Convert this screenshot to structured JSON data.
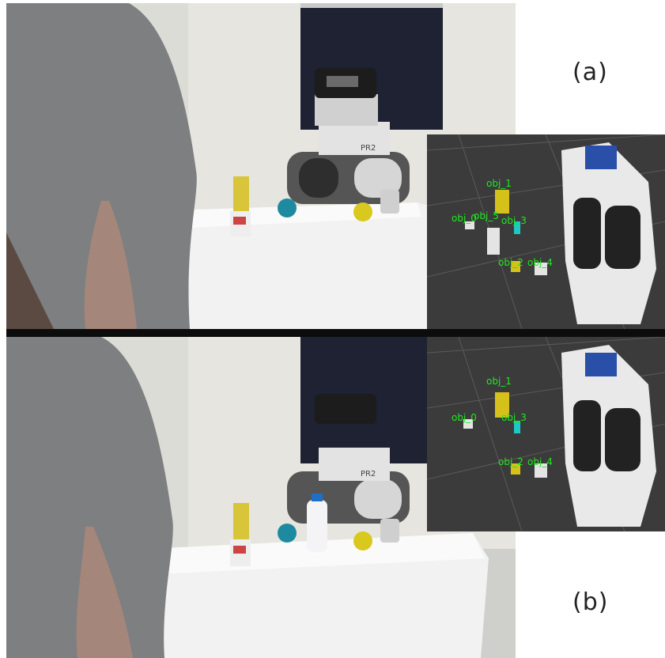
{
  "panels": {
    "a": {
      "label": "(a)",
      "rviz_labels": [
        "obj_1",
        "obj_2",
        "obj_5",
        "obj_3",
        "obj_0",
        "obj_4"
      ]
    },
    "b": {
      "label": "(b)",
      "rviz_labels": [
        "obj_1",
        "obj_0",
        "obj_3",
        "obj_2",
        "obj_4"
      ]
    }
  },
  "robot_badge": "PR2",
  "colors": {
    "label_green": "#20e820",
    "rviz_background": "#3b3b3b",
    "table_cloth": "#f2f2f2",
    "ball": "#1e8aa0",
    "yellow_ball": "#d9c81e"
  }
}
